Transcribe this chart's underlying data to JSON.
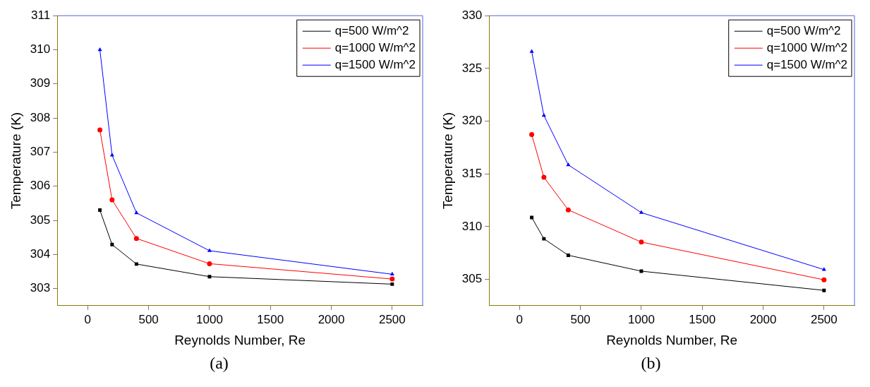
{
  "chart_data": [
    {
      "type": "line",
      "xlabel": "Reynolds Number, Re",
      "ylabel": "Temperature (K)",
      "annotations": [
        "(a)"
      ],
      "legend": "top right",
      "grid": false,
      "xlim": [
        -250,
        2750
      ],
      "xticks": [
        0,
        500,
        1000,
        1500,
        2000,
        2500
      ],
      "ylim": [
        302.5,
        311
      ],
      "yticks": [
        303,
        304,
        305,
        306,
        307,
        308,
        309,
        310,
        311
      ],
      "x": [
        100,
        200,
        400,
        1000,
        2500
      ],
      "series": [
        {
          "name": "q=500 W/m^2",
          "color": "#000000",
          "marker": "square",
          "values": [
            305.3,
            304.29,
            303.72,
            303.35,
            303.13
          ]
        },
        {
          "name": "q=1000 W/m^2",
          "color": "#ff0000",
          "marker": "circle",
          "values": [
            307.65,
            305.6,
            304.47,
            303.73,
            303.28
          ]
        },
        {
          "name": "q=1500 W/m^2",
          "color": "#0000ff",
          "marker": "triangle",
          "values": [
            310.0,
            306.91,
            305.22,
            304.11,
            303.42
          ]
        }
      ]
    },
    {
      "type": "line",
      "xlabel": "Reynolds Number, Re",
      "ylabel": "Temperature (K)",
      "annotations": [
        "(b)"
      ],
      "legend": "top right",
      "grid": false,
      "xlim": [
        -250,
        2750
      ],
      "xticks": [
        0,
        500,
        1000,
        1500,
        2000,
        2500
      ],
      "ylim": [
        302.5,
        330
      ],
      "yticks": [
        305,
        310,
        315,
        320,
        325,
        330
      ],
      "x": [
        100,
        200,
        400,
        1000,
        2500
      ],
      "series": [
        {
          "name": "q=500 W/m^2",
          "color": "#000000",
          "marker": "square",
          "values": [
            310.86,
            308.84,
            307.28,
            305.77,
            303.95
          ]
        },
        {
          "name": "q=1000 W/m^2",
          "color": "#ff0000",
          "marker": "circle",
          "values": [
            318.72,
            314.67,
            311.58,
            308.53,
            304.95
          ]
        },
        {
          "name": "q=1500 W/m^2",
          "color": "#0000ff",
          "marker": "triangle",
          "values": [
            326.6,
            320.53,
            315.85,
            311.32,
            305.92
          ]
        }
      ]
    }
  ]
}
